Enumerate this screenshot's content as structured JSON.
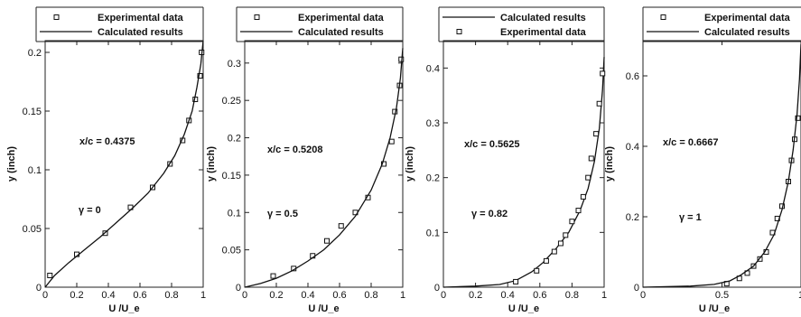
{
  "chart_data": [
    {
      "type": "scatter",
      "xlabel": "U /U_e",
      "ylabel": "y (inch)",
      "xlim": [
        0,
        1
      ],
      "ylim": [
        0,
        0.21
      ],
      "xticks": [
        "0",
        "0.2",
        "0.4",
        "0.6",
        "0.8",
        "1"
      ],
      "yticks": [
        "0",
        "0.05",
        "0.1",
        "0.15",
        "0.2"
      ],
      "xtick_values": [
        0,
        0.2,
        0.4,
        0.6,
        0.8,
        1
      ],
      "ytick_values": [
        0,
        0.05,
        0.1,
        0.15,
        0.2
      ],
      "annotations": [
        "x/c = 0.4375",
        "γ = 0"
      ],
      "legend": {
        "placement": "top",
        "entries": [
          {
            "label": "Experimental data",
            "marker": "square"
          },
          {
            "label": "Calculated results",
            "marker": "line"
          }
        ]
      },
      "series": [
        {
          "name": "Experimental data",
          "marker": "square",
          "x": [
            0.03,
            0.2,
            0.38,
            0.54,
            0.68,
            0.79,
            0.87,
            0.91,
            0.95,
            0.98,
            0.99
          ],
          "y": [
            0.01,
            0.028,
            0.046,
            0.068,
            0.085,
            0.105,
            0.125,
            0.142,
            0.16,
            0.18,
            0.2
          ]
        },
        {
          "name": "Calculated results",
          "marker": "line",
          "x": [
            0,
            0.06,
            0.15,
            0.25,
            0.35,
            0.45,
            0.55,
            0.65,
            0.75,
            0.82,
            0.88,
            0.93,
            0.96,
            0.985,
            1.0
          ],
          "y": [
            0,
            0.01,
            0.021,
            0.032,
            0.043,
            0.055,
            0.067,
            0.08,
            0.097,
            0.112,
            0.13,
            0.15,
            0.17,
            0.19,
            0.21
          ]
        }
      ]
    },
    {
      "type": "scatter",
      "xlabel": "U /U_e",
      "ylabel": "y (inch)",
      "xlim": [
        0,
        1
      ],
      "ylim": [
        0,
        0.33
      ],
      "xticks": [
        "0",
        "0.2",
        "0.4",
        "0.6",
        "0.8",
        "1"
      ],
      "yticks": [
        "0",
        "0.05",
        "0.1",
        "0.15",
        "0.2",
        "0.25",
        "0.3"
      ],
      "xtick_values": [
        0,
        0.2,
        0.4,
        0.6,
        0.8,
        1
      ],
      "ytick_values": [
        0,
        0.05,
        0.1,
        0.15,
        0.2,
        0.25,
        0.3
      ],
      "annotations": [
        "x/c = 0.5208",
        "γ = 0.5"
      ],
      "legend": {
        "placement": "top",
        "entries": [
          {
            "label": "Experimental data",
            "marker": "square"
          },
          {
            "label": "Calculated results",
            "marker": "line"
          }
        ]
      },
      "series": [
        {
          "name": "Experimental data",
          "marker": "square",
          "x": [
            0.18,
            0.31,
            0.43,
            0.52,
            0.61,
            0.7,
            0.78,
            0.88,
            0.93,
            0.95,
            0.98,
            0.99
          ],
          "y": [
            0.015,
            0.025,
            0.042,
            0.062,
            0.082,
            0.1,
            0.12,
            0.165,
            0.195,
            0.235,
            0.27,
            0.305
          ]
        },
        {
          "name": "Calculated results",
          "marker": "line",
          "x": [
            0,
            0.1,
            0.2,
            0.3,
            0.4,
            0.5,
            0.6,
            0.7,
            0.8,
            0.87,
            0.92,
            0.96,
            0.985,
            1.0
          ],
          "y": [
            0,
            0.005,
            0.012,
            0.022,
            0.035,
            0.05,
            0.07,
            0.095,
            0.13,
            0.165,
            0.2,
            0.24,
            0.28,
            0.32
          ]
        }
      ]
    },
    {
      "type": "scatter",
      "xlabel": "U /U_e",
      "ylabel": "y (inch)",
      "xlim": [
        0,
        1
      ],
      "ylim": [
        0,
        0.45
      ],
      "xticks": [
        "0",
        "0.2",
        "0.4",
        "0.6",
        "0.8",
        "1"
      ],
      "yticks": [
        "0",
        "0.1",
        "0.2",
        "0.3",
        "0.4"
      ],
      "xtick_values": [
        0,
        0.2,
        0.4,
        0.6,
        0.8,
        1
      ],
      "ytick_values": [
        0,
        0.1,
        0.2,
        0.3,
        0.4
      ],
      "annotations": [
        "x/c = 0.5625",
        "γ = 0.82"
      ],
      "legend": {
        "placement": "top",
        "entries": [
          {
            "label": "Calculated results",
            "marker": "line"
          },
          {
            "label": "Experimental data",
            "marker": "square"
          }
        ]
      },
      "series": [
        {
          "name": "Calculated results",
          "marker": "line",
          "x": [
            0,
            0.2,
            0.35,
            0.45,
            0.55,
            0.62,
            0.7,
            0.78,
            0.85,
            0.9,
            0.94,
            0.97,
            0.99,
            1.0
          ],
          "y": [
            0,
            0.002,
            0.005,
            0.012,
            0.028,
            0.045,
            0.07,
            0.1,
            0.14,
            0.18,
            0.23,
            0.29,
            0.36,
            0.42
          ]
        },
        {
          "name": "Experimental data",
          "marker": "square",
          "x": [
            0.45,
            0.58,
            0.64,
            0.69,
            0.73,
            0.76,
            0.8,
            0.84,
            0.87,
            0.9,
            0.92,
            0.95,
            0.97,
            0.99
          ],
          "y": [
            0.01,
            0.03,
            0.048,
            0.065,
            0.08,
            0.095,
            0.12,
            0.14,
            0.165,
            0.2,
            0.235,
            0.28,
            0.335,
            0.39
          ]
        }
      ]
    },
    {
      "type": "scatter",
      "xlabel": "U /U_e",
      "ylabel": "y (inch)",
      "xlim": [
        0,
        1
      ],
      "ylim": [
        0,
        0.7
      ],
      "xticks": [
        "0",
        "0.5",
        "1"
      ],
      "yticks": [
        "0",
        "0.2",
        "0.4",
        "0.6"
      ],
      "xtick_values": [
        0,
        0.5,
        1
      ],
      "ytick_values": [
        0,
        0.2,
        0.4,
        0.6
      ],
      "annotations": [
        "x/c = 0.6667",
        "γ = 1"
      ],
      "legend": {
        "placement": "top",
        "entries": [
          {
            "label": "Experimental data",
            "marker": "square"
          },
          {
            "label": "Calculated results",
            "marker": "line"
          }
        ]
      },
      "series": [
        {
          "name": "Experimental data",
          "marker": "square",
          "x": [
            0.53,
            0.61,
            0.66,
            0.7,
            0.74,
            0.78,
            0.82,
            0.85,
            0.88,
            0.92,
            0.94,
            0.96,
            0.98,
            0.99,
            1.0
          ],
          "y": [
            0.01,
            0.025,
            0.04,
            0.06,
            0.08,
            0.1,
            0.155,
            0.195,
            0.23,
            0.3,
            0.36,
            0.42,
            0.48,
            0.56,
            0.68
          ]
        },
        {
          "name": "Calculated results",
          "marker": "line",
          "x": [
            0,
            0.3,
            0.45,
            0.55,
            0.62,
            0.7,
            0.77,
            0.83,
            0.88,
            0.92,
            0.95,
            0.975,
            0.99,
            1.0
          ],
          "y": [
            0,
            0.003,
            0.008,
            0.018,
            0.035,
            0.06,
            0.1,
            0.15,
            0.22,
            0.3,
            0.39,
            0.49,
            0.59,
            0.69
          ]
        }
      ]
    }
  ]
}
